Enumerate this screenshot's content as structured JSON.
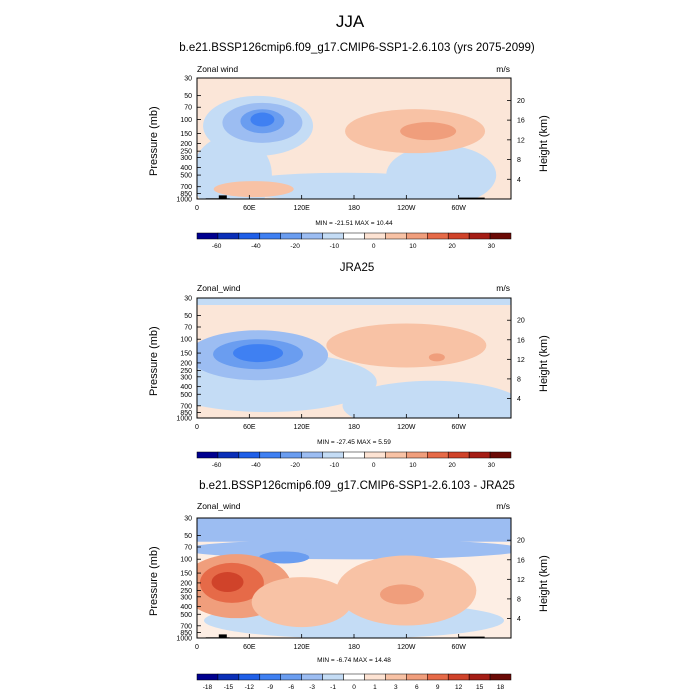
{
  "figure": {
    "title": "JJA"
  },
  "chart_data": [
    {
      "type": "heatmap",
      "title": "b.e21.BSSP126cmip6.f09_g17.CMIP6-SSP1-2.6.103 (yrs 2075-2099)",
      "left_label": "Zonal wind",
      "right_label": "m/s",
      "ylabel": "Pressure (mb)",
      "ylabel_right": "Height (km)",
      "pressure_ticks": [
        "30",
        "50",
        "70",
        "100",
        "150",
        "200",
        "250",
        "300",
        "400",
        "500",
        "700",
        "850",
        "1000"
      ],
      "height_ticks": [
        "4",
        "8",
        "12",
        "16",
        "20"
      ],
      "x_ticks": [
        "0",
        "60E",
        "120E",
        "180",
        "120W",
        "60W"
      ],
      "min_max_label": "MIN = -21.51  MAX =  10.44",
      "min": -21.51,
      "max": 10.44,
      "colorbar_levels": [
        "-60",
        "-40",
        "-20",
        "-10",
        "0",
        "10",
        "20",
        "30"
      ],
      "features": [
        {
          "kind": "min",
          "lon": 75,
          "p": 100,
          "value": -21.5
        },
        {
          "kind": "max",
          "lon": 265,
          "p": 140,
          "value": 10.4
        },
        {
          "kind": "max",
          "lon": 230,
          "p": 110,
          "value": 6
        }
      ]
    },
    {
      "type": "heatmap",
      "title": "JRA25",
      "left_label": "Zonal_wind",
      "right_label": "m/s",
      "ylabel": "Pressure (mb)",
      "ylabel_right": "Height (km)",
      "pressure_ticks": [
        "30",
        "50",
        "70",
        "100",
        "150",
        "200",
        "250",
        "300",
        "400",
        "500",
        "700",
        "850",
        "1000"
      ],
      "height_ticks": [
        "4",
        "8",
        "12",
        "16",
        "20"
      ],
      "x_ticks": [
        "0",
        "60E",
        "120E",
        "180",
        "120W",
        "60W"
      ],
      "min_max_label": "MIN = -27.45  MAX =   5.59",
      "min": -27.45,
      "max": 5.59,
      "colorbar_levels": [
        "-60",
        "-40",
        "-20",
        "-10",
        "0",
        "10",
        "20",
        "30"
      ],
      "features": [
        {
          "kind": "min",
          "lon": 70,
          "p": 150,
          "value": -27.4
        },
        {
          "kind": "max",
          "lon": 270,
          "p": 160,
          "value": 5.6
        }
      ]
    },
    {
      "type": "heatmap",
      "title": "b.e21.BSSP126cmip6.f09_g17.CMIP6-SSP1-2.6.103 - JRA25",
      "left_label": "Zonal_wind",
      "right_label": "m/s",
      "ylabel": "Pressure (mb)",
      "ylabel_right": "Height (km)",
      "pressure_ticks": [
        "30",
        "50",
        "70",
        "100",
        "150",
        "200",
        "250",
        "300",
        "400",
        "500",
        "700",
        "850",
        "1000"
      ],
      "height_ticks": [
        "4",
        "8",
        "12",
        "16",
        "20"
      ],
      "x_ticks": [
        "0",
        "60E",
        "120E",
        "180",
        "120W",
        "60W"
      ],
      "min_max_label": "MIN =  -6.74  MAX =  14.48",
      "min": -6.74,
      "max": 14.48,
      "colorbar_levels": [
        "-18",
        "-15",
        "-12",
        "-9",
        "-6",
        "-3",
        "-1",
        "0",
        "1",
        "3",
        "6",
        "9",
        "12",
        "15",
        "18"
      ],
      "features": [
        {
          "kind": "max",
          "lon": 35,
          "p": 200,
          "value": 14.5
        },
        {
          "kind": "max",
          "lon": 235,
          "p": 280,
          "value": 9
        },
        {
          "kind": "min",
          "lon": 100,
          "p": 100,
          "value": -6.7
        }
      ]
    }
  ],
  "colors": {
    "diverging": [
      "#00008f",
      "#0a2fb8",
      "#1f5fe8",
      "#3f80f2",
      "#6a9df0",
      "#9cbdf2",
      "#c4dcf5",
      "#ffffff",
      "#fde3d3",
      "#f8c2a5",
      "#f09e7c",
      "#e66a48",
      "#d0432a",
      "#a51d15",
      "#6b0a06"
    ]
  }
}
